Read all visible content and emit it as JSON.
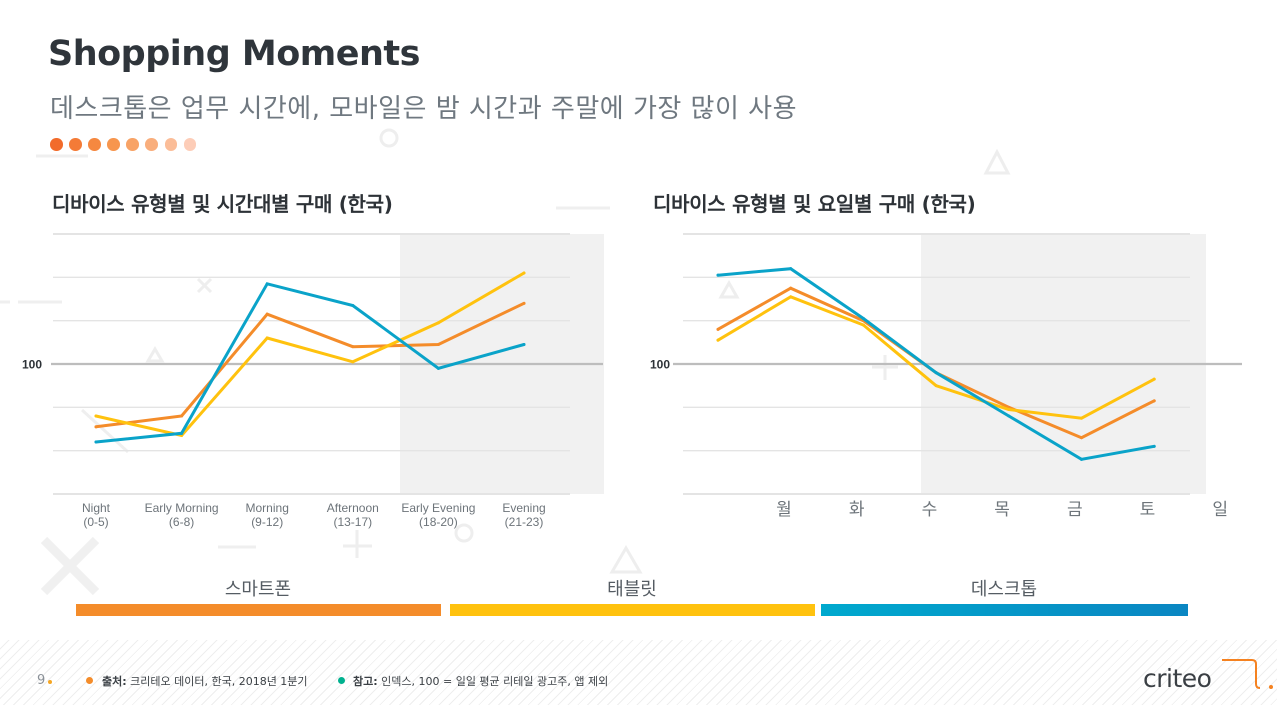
{
  "header": {
    "title": "Shopping Moments",
    "subtitle": "데스크톱은 업무 시간에, 모바일은 밤 시간과 주말에 가장 많이 사용",
    "dot_colors": [
      "#F26B2B",
      "#F47B37",
      "#F58840",
      "#F7964E",
      "#F8A366",
      "#F9AE7C",
      "#FBBD98",
      "#FDCDB8"
    ]
  },
  "colors": {
    "smartphone": "#F48C2A",
    "tablet": "#FFC20E",
    "desktop": "#0AA3C9",
    "shade": "#F1F1F1",
    "grid": "#E4E4E4",
    "baseline": "#BDBDBD"
  },
  "chart_data": [
    {
      "type": "line",
      "title": "디바이스 유형별 및 시간대별 구매 (한국)",
      "xlabel": "",
      "ylabel": "",
      "categories": [
        [
          "Night",
          "(0-5)"
        ],
        [
          "Early Morning",
          "(6-8)"
        ],
        [
          "Morning",
          "(9-12)"
        ],
        [
          "Afternoon",
          "(13-17)"
        ],
        [
          "Early Evening",
          "(18-20)"
        ],
        [
          "Evening",
          "(21-23)"
        ]
      ],
      "ylim": [
        40,
        160
      ],
      "y_ticks": [
        40,
        60,
        80,
        100,
        120,
        140,
        160
      ],
      "y_labels": [
        {
          "value": 100,
          "label": "100"
        }
      ],
      "grid": true,
      "highlight_range": [
        "Early Evening",
        "Evening"
      ],
      "series": [
        {
          "name": "스마트폰",
          "key": "smartphone",
          "values": [
            71,
            76,
            123,
            108,
            109,
            128
          ]
        },
        {
          "name": "태블릿",
          "key": "tablet",
          "values": [
            76,
            67,
            112,
            101,
            119,
            142
          ]
        },
        {
          "name": "데스크톱",
          "key": "desktop",
          "values": [
            64,
            68,
            137,
            127,
            98,
            109
          ]
        }
      ]
    },
    {
      "type": "line",
      "title": "디바이스 유형별 및 요일별 구매 (한국)",
      "xlabel": "",
      "ylabel": "",
      "categories": [
        "월",
        "화",
        "수",
        "목",
        "금",
        "토",
        "일"
      ],
      "ylim": [
        40,
        160
      ],
      "y_ticks": [
        40,
        60,
        80,
        100,
        120,
        140,
        160
      ],
      "y_labels": [
        {
          "value": 100,
          "label": "100"
        }
      ],
      "grid": true,
      "highlight_range": [
        "목",
        "일"
      ],
      "series": [
        {
          "name": "스마트폰",
          "key": "smartphone",
          "values": [
            116,
            135,
            120,
            96,
            80,
            66,
            83
          ]
        },
        {
          "name": "태블릿",
          "key": "tablet",
          "values": [
            111,
            131,
            118,
            90,
            79,
            75,
            93
          ]
        },
        {
          "name": "데스크톱",
          "key": "desktop",
          "values": [
            141,
            144,
            121,
            96,
            76,
            56,
            62
          ]
        }
      ]
    }
  ],
  "legend": [
    {
      "label": "스마트폰",
      "key": "smartphone"
    },
    {
      "label": "태블릿",
      "key": "tablet"
    },
    {
      "label": "데스크톱",
      "key": "desktop"
    }
  ],
  "footer": {
    "page_number": "9",
    "source_label": "출처:",
    "source_text": " 크리테오 데이터, 한국, 2018년 1분기",
    "source_dot_color": "#F48C2A",
    "note_label": "참고:",
    "note_text": " 인덱스, 100 = 일일 평균 리테일 광고주, 앱 제외",
    "note_dot_color": "#00B18F",
    "logo_text": "criteo"
  }
}
